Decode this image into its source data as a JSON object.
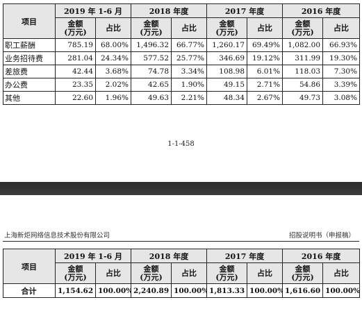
{
  "header_row": {
    "item": "项目",
    "years": [
      "2019 年 1-6 月",
      "2018 年度",
      "2017 年度",
      "2016 年度"
    ],
    "amount_label": "金额\n(万元)",
    "share_label": "占比"
  },
  "table1": {
    "rows": [
      {
        "label": "职工薪酬",
        "values": [
          "785.19",
          "68.00%",
          "1,496.32",
          "66.77%",
          "1,260.17",
          "69.49%",
          "1,082.00",
          "66.93%"
        ]
      },
      {
        "label": "业务招待费",
        "values": [
          "281.04",
          "24.34%",
          "577.52",
          "25.77%",
          "346.69",
          "19.12%",
          "311.99",
          "19.30%"
        ]
      },
      {
        "label": "差旅费",
        "values": [
          "42.44",
          "3.68%",
          "74.78",
          "3.34%",
          "108.98",
          "6.01%",
          "118.03",
          "7.30%"
        ]
      },
      {
        "label": "办公费",
        "values": [
          "23.35",
          "2.02%",
          "42.65",
          "1.90%",
          "49.15",
          "2.71%",
          "54.86",
          "3.39%"
        ]
      },
      {
        "label": "其他",
        "values": [
          "22.60",
          "1.96%",
          "49.63",
          "2.21%",
          "48.34",
          "2.67%",
          "49.73",
          "3.08%"
        ]
      }
    ]
  },
  "page_number": "1-1-458",
  "running_header": {
    "left": "上海新炬网络信息技术股份有限公司",
    "right": "招股说明书（申报稿）"
  },
  "table2": {
    "rows": [
      {
        "label": "合计",
        "values": [
          "1,154.62",
          "100.00%",
          "2,240.89",
          "100.00%",
          "1,813.33",
          "100.00%",
          "1,616.60",
          "100.00%"
        ]
      }
    ]
  }
}
